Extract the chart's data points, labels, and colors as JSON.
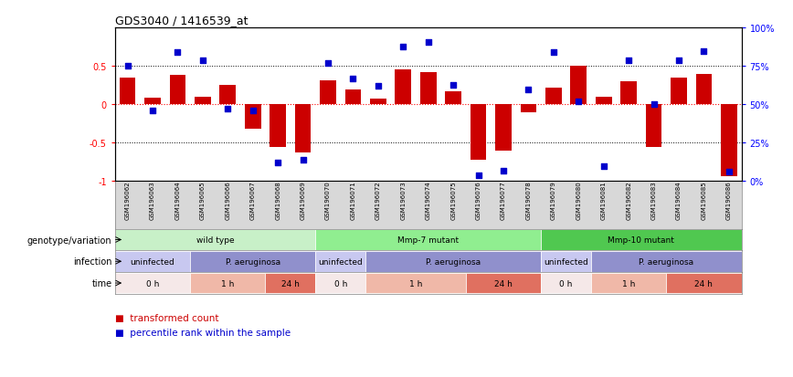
{
  "title": "GDS3040 / 1416539_at",
  "samples": [
    "GSM196062",
    "GSM196063",
    "GSM196064",
    "GSM196065",
    "GSM196066",
    "GSM196067",
    "GSM196068",
    "GSM196069",
    "GSM196070",
    "GSM196071",
    "GSM196072",
    "GSM196073",
    "GSM196074",
    "GSM196075",
    "GSM196076",
    "GSM196077",
    "GSM196078",
    "GSM196079",
    "GSM196080",
    "GSM196081",
    "GSM196082",
    "GSM196083",
    "GSM196084",
    "GSM196085",
    "GSM196086"
  ],
  "bar_values": [
    0.35,
    0.09,
    0.38,
    0.1,
    0.26,
    -0.32,
    -0.55,
    -0.62,
    0.32,
    0.2,
    0.08,
    0.46,
    0.42,
    0.17,
    -0.72,
    -0.6,
    -0.1,
    0.22,
    0.5,
    0.1,
    0.3,
    -0.55,
    0.35,
    0.4,
    -0.93
  ],
  "percentile_values": [
    0.75,
    0.46,
    0.84,
    0.79,
    0.47,
    0.46,
    0.12,
    0.14,
    0.77,
    0.67,
    0.62,
    0.88,
    0.91,
    0.63,
    0.04,
    0.07,
    0.6,
    0.84,
    0.52,
    0.1,
    0.79,
    0.5,
    0.79,
    0.85,
    0.06
  ],
  "bar_color": "#cc0000",
  "percentile_color": "#0000cc",
  "ylim": [
    -1.0,
    1.0
  ],
  "genotype_groups": [
    {
      "label": "wild type",
      "start": 0,
      "end": 8,
      "color": "#c8f0c8"
    },
    {
      "label": "Mmp-7 mutant",
      "start": 8,
      "end": 17,
      "color": "#90ee90"
    },
    {
      "label": "Mmp-10 mutant",
      "start": 17,
      "end": 25,
      "color": "#50c850"
    }
  ],
  "infection_groups": [
    {
      "label": "uninfected",
      "start": 0,
      "end": 3,
      "color": "#c8c8f0"
    },
    {
      "label": "P. aeruginosa",
      "start": 3,
      "end": 8,
      "color": "#9090cc"
    },
    {
      "label": "uninfected",
      "start": 8,
      "end": 10,
      "color": "#c8c8f0"
    },
    {
      "label": "P. aeruginosa",
      "start": 10,
      "end": 17,
      "color": "#9090cc"
    },
    {
      "label": "uninfected",
      "start": 17,
      "end": 19,
      "color": "#c8c8f0"
    },
    {
      "label": "P. aeruginosa",
      "start": 19,
      "end": 25,
      "color": "#9090cc"
    }
  ],
  "time_groups": [
    {
      "label": "0 h",
      "start": 0,
      "end": 3,
      "color": "#f5e8e8"
    },
    {
      "label": "1 h",
      "start": 3,
      "end": 6,
      "color": "#f0b8a8"
    },
    {
      "label": "24 h",
      "start": 6,
      "end": 8,
      "color": "#e07060"
    },
    {
      "label": "0 h",
      "start": 8,
      "end": 10,
      "color": "#f5e8e8"
    },
    {
      "label": "1 h",
      "start": 10,
      "end": 14,
      "color": "#f0b8a8"
    },
    {
      "label": "24 h",
      "start": 14,
      "end": 17,
      "color": "#e07060"
    },
    {
      "label": "0 h",
      "start": 17,
      "end": 19,
      "color": "#f5e8e8"
    },
    {
      "label": "1 h",
      "start": 19,
      "end": 22,
      "color": "#f0b8a8"
    },
    {
      "label": "24 h",
      "start": 22,
      "end": 25,
      "color": "#e07060"
    }
  ],
  "legend_bar_label": "transformed count",
  "legend_pct_label": "percentile rank within the sample",
  "row_labels": [
    "genotype/variation",
    "infection",
    "time"
  ],
  "n_samples": 25
}
